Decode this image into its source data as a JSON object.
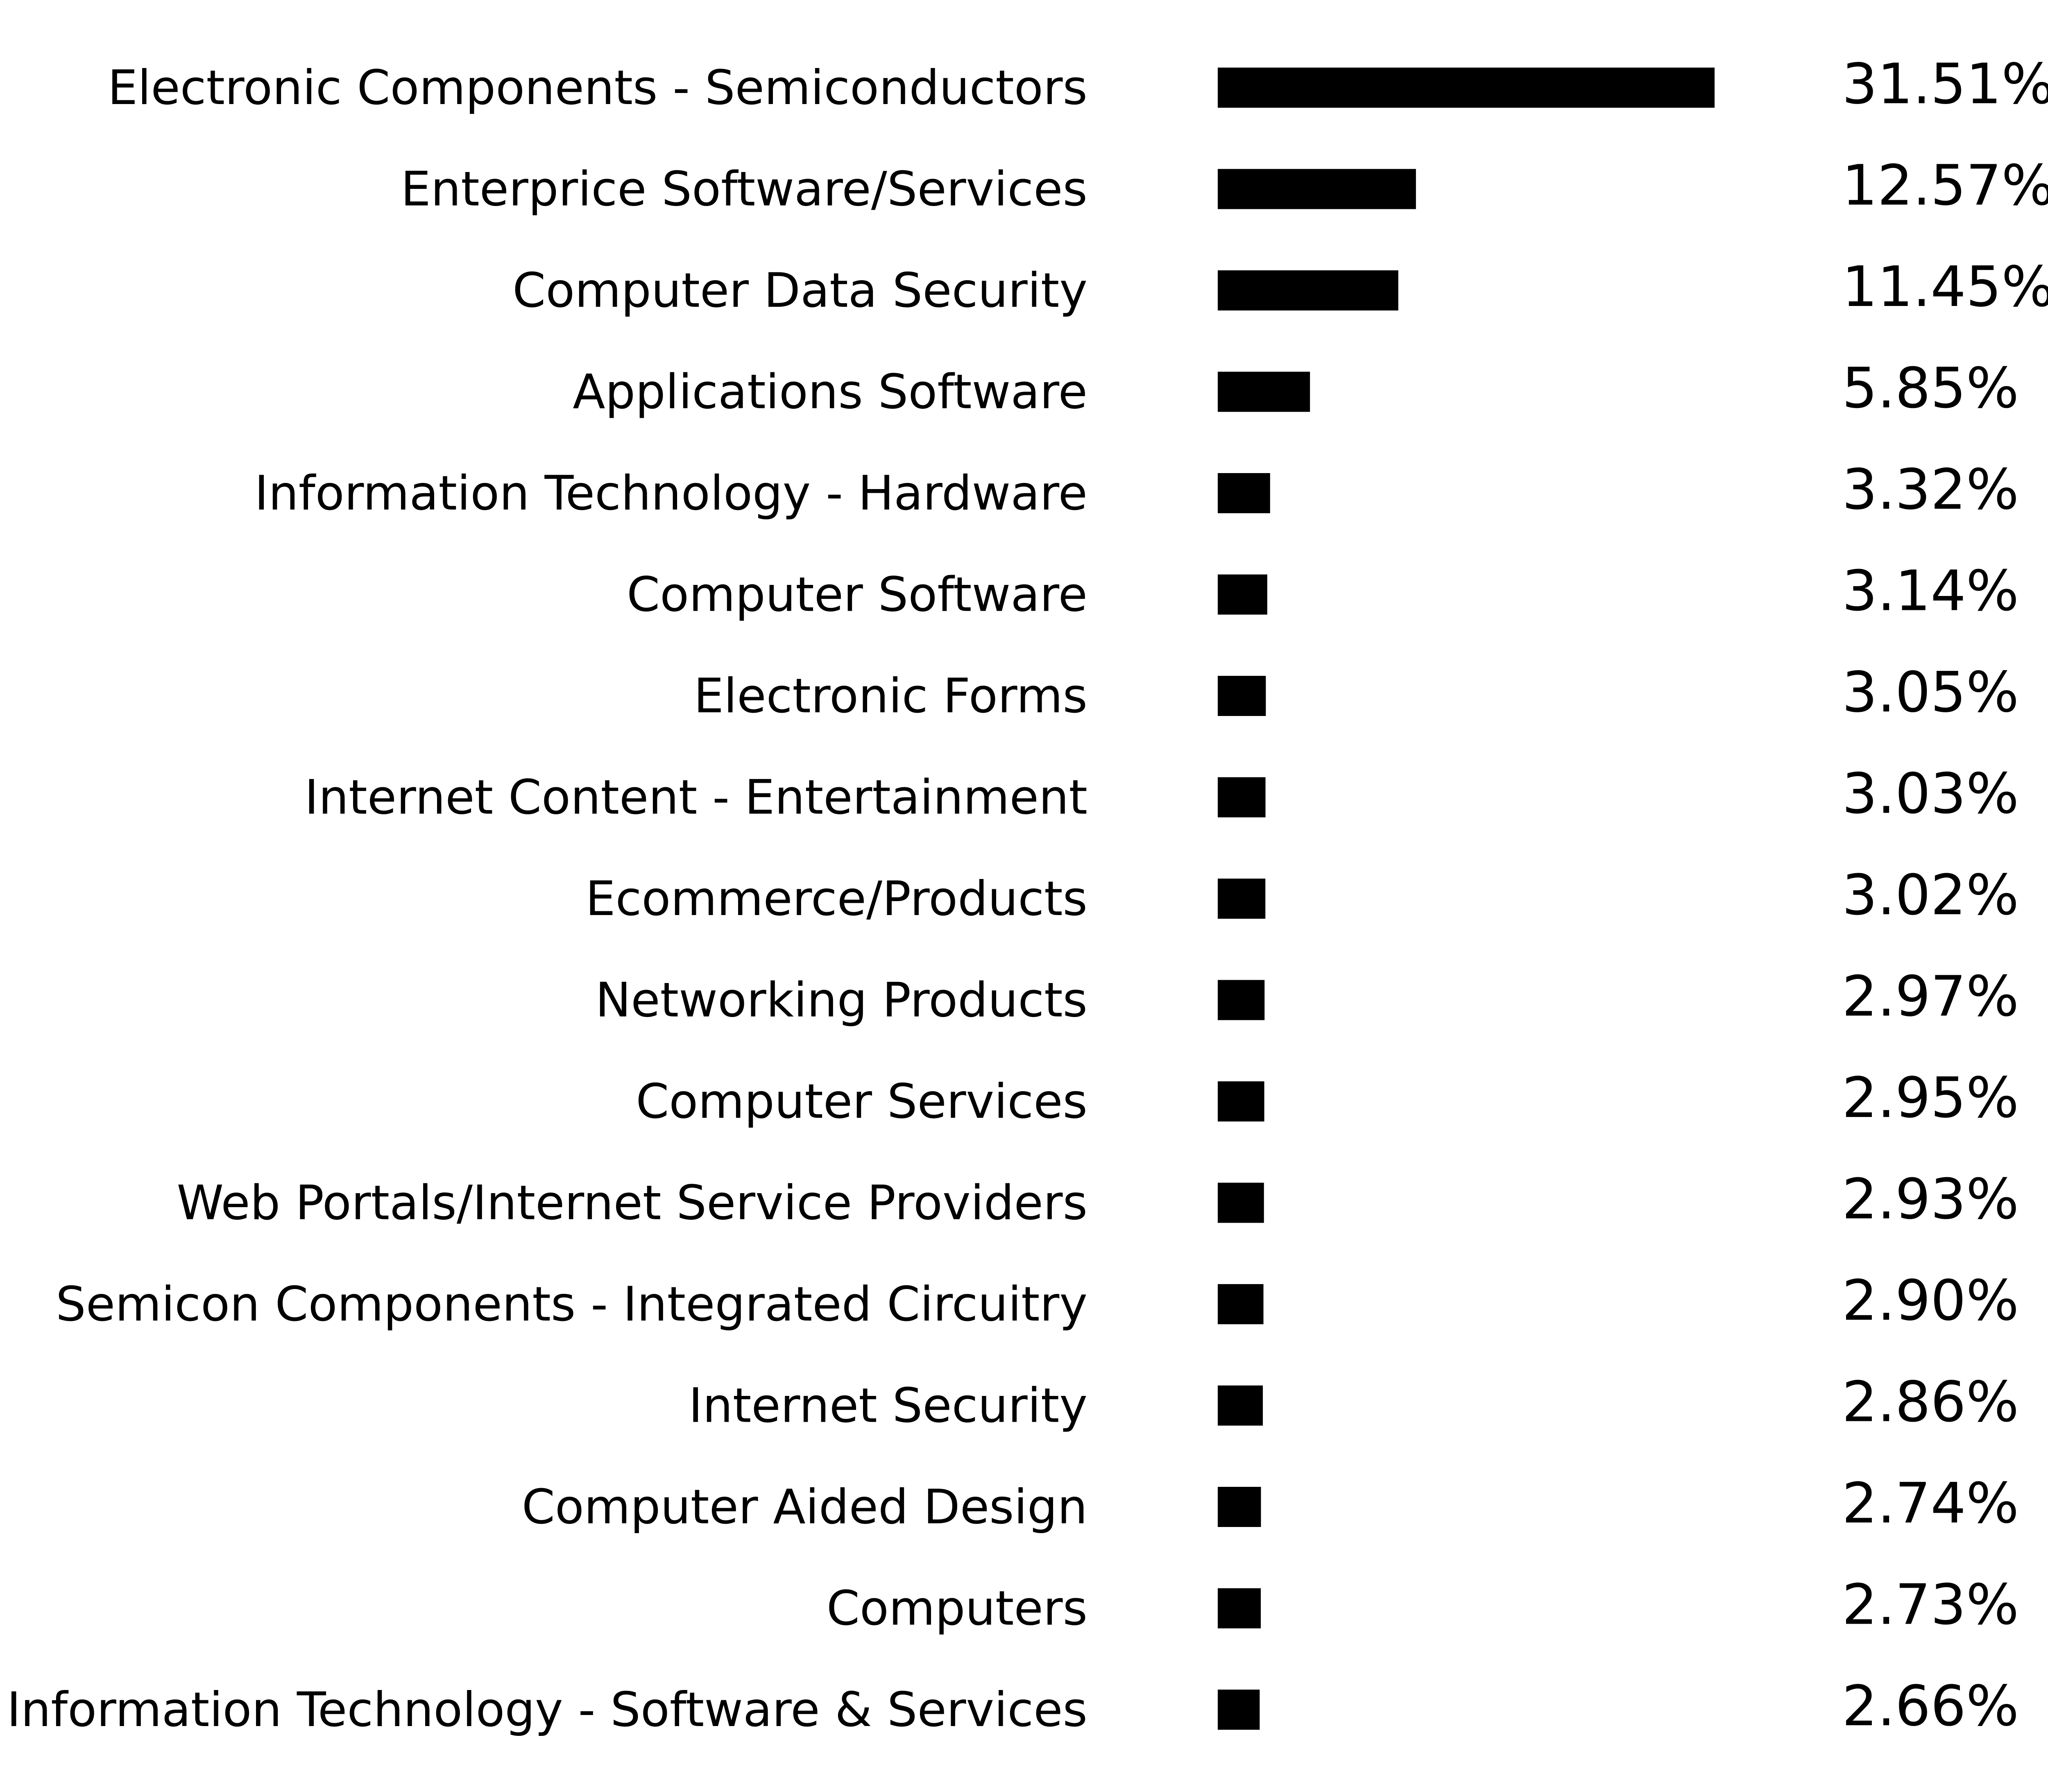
{
  "chart_data": {
    "type": "bar",
    "orientation": "horizontal",
    "categories": [
      "Electronic Components - Semiconductors",
      "Enterprice Software/Services",
      "Computer Data Security",
      "Applications Software",
      "Information Technology - Hardware",
      "Computer Software",
      "Electronic Forms",
      "Internet Content - Entertainment",
      "Ecommerce/Products",
      "Networking Products",
      "Computer Services",
      "Web Portals/Internet Service Providers",
      "Semicon Components - Integrated Circuitry",
      "Internet Security",
      "Computer Aided Design",
      "Computers",
      "Information Technology - Software & Services"
    ],
    "values": [
      31.51,
      12.57,
      11.45,
      5.85,
      3.32,
      3.14,
      3.05,
      3.03,
      3.02,
      2.97,
      2.95,
      2.93,
      2.9,
      2.86,
      2.74,
      2.73,
      2.66
    ],
    "value_labels": [
      "31.51%",
      "12.57%",
      "11.45%",
      "5.85%",
      "3.32%",
      "3.14%",
      "3.05%",
      "3.03%",
      "3.02%",
      "2.97%",
      "2.95%",
      "2.93%",
      "2.90%",
      "2.86%",
      "2.74%",
      "2.73%",
      "2.66%"
    ],
    "title": "",
    "xlabel": "",
    "ylabel": "",
    "xlim": [
      0,
      31.51
    ],
    "grid": false,
    "legend": "none",
    "bar_color": "#000000"
  }
}
